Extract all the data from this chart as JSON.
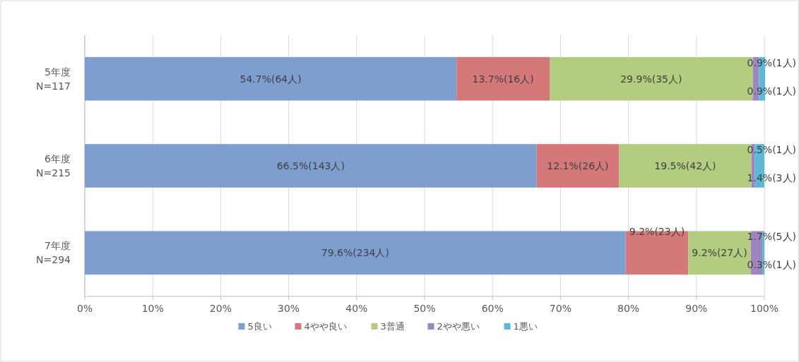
{
  "chart_data": {
    "type": "bar",
    "orientation": "horizontal",
    "stacked": true,
    "categories": [
      "5年度\nN=117",
      "6年度\nN=215",
      "7年度\nN=294"
    ],
    "series": [
      {
        "name": "5良い",
        "color": "#7e9ed0",
        "values": [
          54.7,
          66.5,
          79.6
        ],
        "value_labels": [
          "54.7%(64人)",
          "66.5%(143人)",
          "79.6%(234人)"
        ]
      },
      {
        "name": "4やや良い",
        "color": "#d4787a",
        "values": [
          13.7,
          12.1,
          9.2
        ],
        "value_labels": [
          "13.7%(16人)",
          "12.1%(26人)",
          "9.2%(23人)"
        ]
      },
      {
        "name": "3普通",
        "color": "#b3cc80",
        "values": [
          29.9,
          19.5,
          9.2
        ],
        "value_labels": [
          "29.9%(35人)",
          "19.5%(42人)",
          "9.2%(27人)"
        ]
      },
      {
        "name": "2やや悪い",
        "color": "#9d86c0",
        "values": [
          0.9,
          0.5,
          1.7
        ],
        "value_labels": [
          "0.9%(1人)",
          "0.5%(1人)",
          "1.7%(5人)"
        ]
      },
      {
        "name": "1悪い",
        "color": "#5cb8d4",
        "values": [
          0.9,
          1.4,
          0.3
        ],
        "value_labels": [
          "0.9%(1人)",
          "1.4%(3人)",
          "0.3%(1人)"
        ]
      }
    ],
    "xlim": [
      0,
      100
    ],
    "xticks": [
      {
        "value": 0,
        "label": "0%"
      },
      {
        "value": 10,
        "label": "10%"
      },
      {
        "value": 20,
        "label": "20%"
      },
      {
        "value": 30,
        "label": "30%"
      },
      {
        "value": 40,
        "label": "40%"
      },
      {
        "value": 50,
        "label": "50%"
      },
      {
        "value": 60,
        "label": "60%"
      },
      {
        "value": 70,
        "label": "70%"
      },
      {
        "value": 80,
        "label": "80%"
      },
      {
        "value": 90,
        "label": "90%"
      },
      {
        "value": 100,
        "label": "100%"
      }
    ],
    "grid": "x",
    "legend": "bottom"
  }
}
